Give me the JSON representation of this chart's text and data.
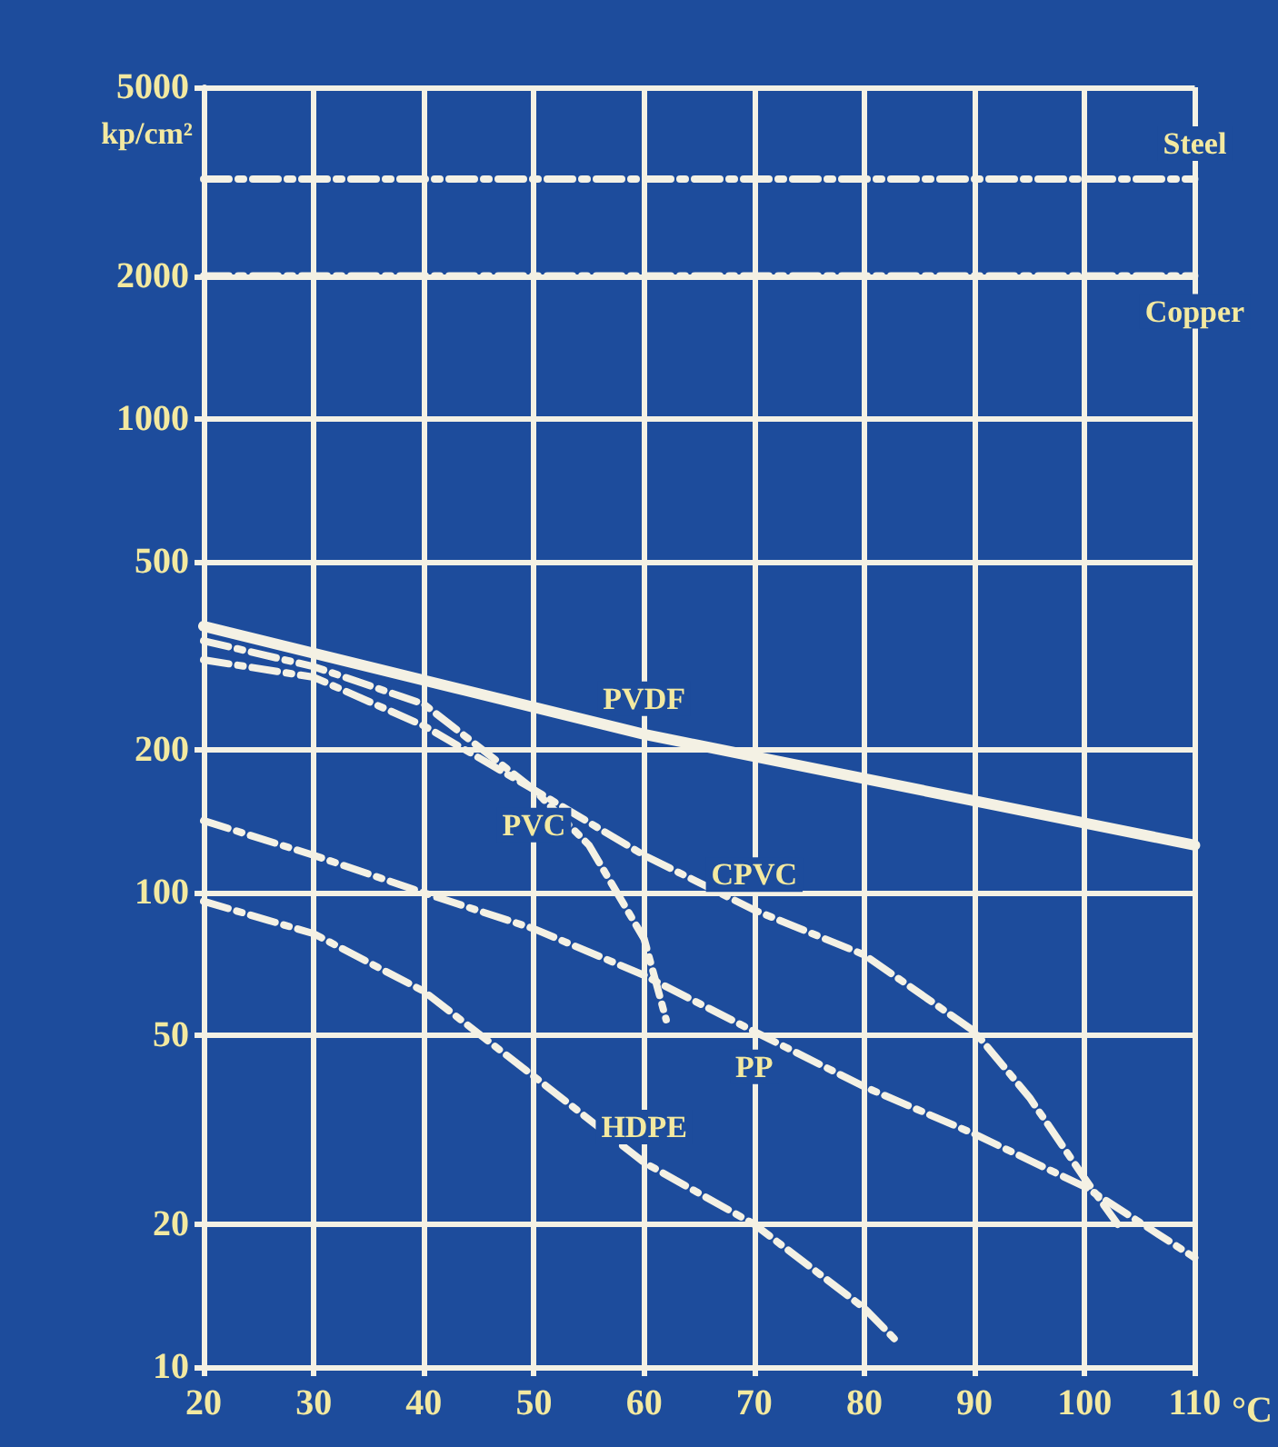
{
  "chart_data": {
    "type": "line",
    "xlabel": "°C",
    "ylabel": "kp/cm²",
    "log": "y",
    "grid": true,
    "legend": false,
    "marker": "none",
    "xlim": [
      20,
      110
    ],
    "xticks": [
      20,
      30,
      40,
      50,
      60,
      70,
      80,
      90,
      100,
      110
    ],
    "ylim": [
      10,
      5000
    ],
    "yticks": [
      10,
      20,
      50,
      100,
      200,
      500,
      1000,
      2000,
      5000
    ],
    "series": [
      {
        "name": "Steel",
        "color": "#f4f1e4",
        "line_style": "dashed",
        "x": [
          20,
          110
        ],
        "values": [
          3200,
          3200
        ]
      },
      {
        "name": "Copper",
        "color": "#f4f1e4",
        "line_style": "dashed",
        "x": [
          20,
          110
        ],
        "values": [
          2000,
          2000
        ]
      },
      {
        "name": "PVDF",
        "color": "#f4f1e4",
        "line_style": "solid",
        "x": [
          20,
          60,
          110
        ],
        "values": [
          365,
          216,
          126
        ]
      },
      {
        "name": "PVC",
        "color": "#f4f1e4",
        "line_style": "dashed",
        "x": [
          20,
          30,
          40,
          50,
          55,
          60,
          62
        ],
        "values": [
          340,
          300,
          250,
          165,
          126,
          80,
          54
        ]
      },
      {
        "name": "CPVC",
        "color": "#f4f1e4",
        "line_style": "dashed",
        "x": [
          20,
          30,
          40,
          50,
          60,
          70,
          80,
          90,
          95,
          100,
          103
        ],
        "values": [
          310,
          285,
          225,
          165,
          120,
          92,
          74,
          51,
          37,
          25,
          20
        ]
      },
      {
        "name": "PP",
        "color": "#f4f1e4",
        "line_style": "dashed",
        "x": [
          20,
          30,
          40,
          50,
          60,
          70,
          80,
          90,
          100,
          110
        ],
        "values": [
          142,
          120,
          100,
          84,
          67,
          51,
          39,
          31,
          24,
          17
        ]
      },
      {
        "name": "HDPE",
        "color": "#f4f1e4",
        "line_style": "dashed",
        "x": [
          20,
          30,
          40,
          50,
          60,
          70,
          80,
          83
        ],
        "values": [
          96,
          82,
          62,
          41,
          27,
          20,
          13.3,
          11.3
        ]
      }
    ]
  }
}
